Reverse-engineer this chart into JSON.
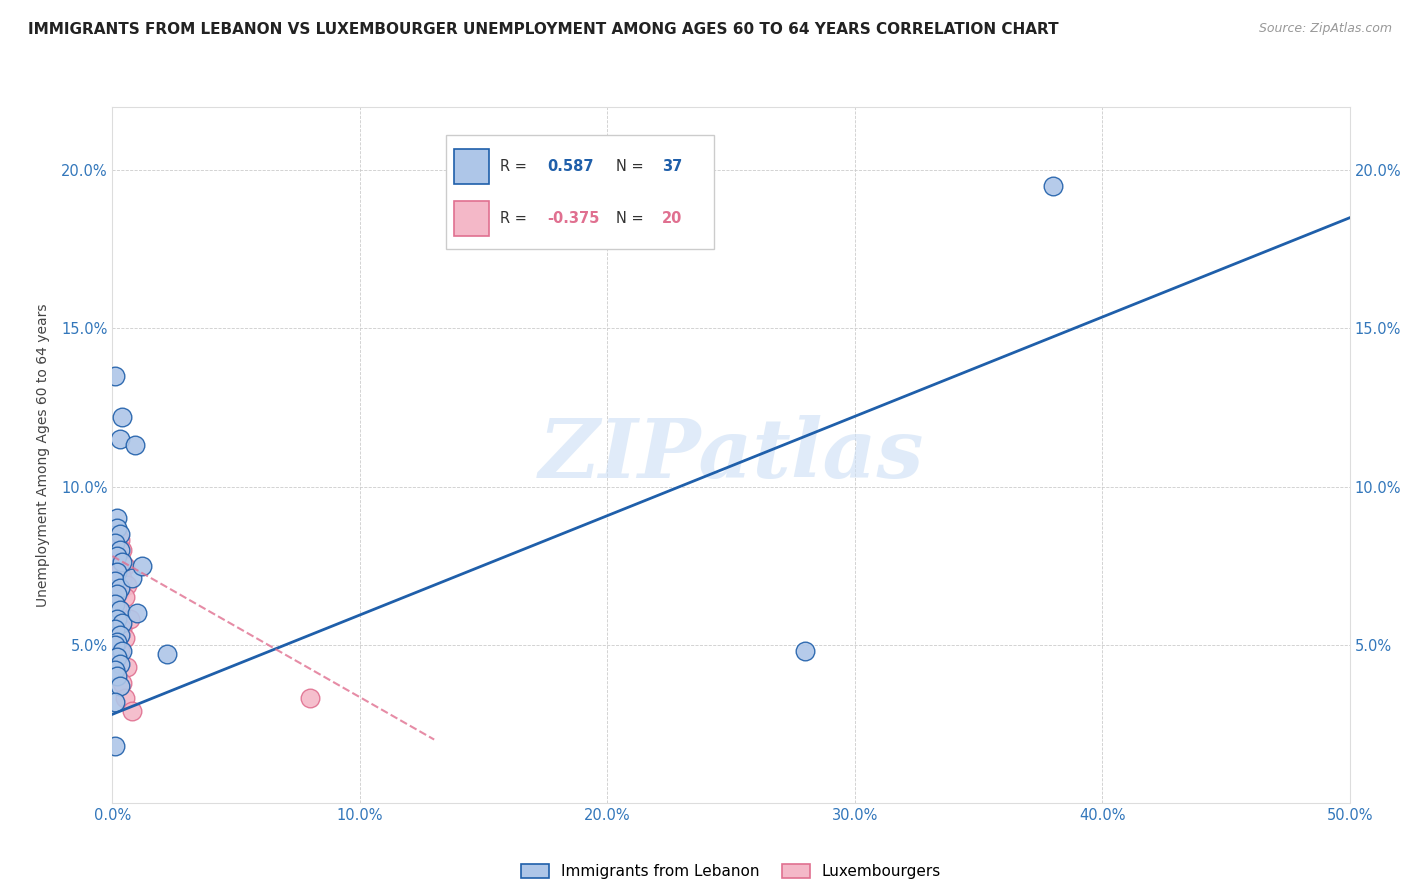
{
  "title": "IMMIGRANTS FROM LEBANON VS LUXEMBOURGER UNEMPLOYMENT AMONG AGES 60 TO 64 YEARS CORRELATION CHART",
  "source": "Source: ZipAtlas.com",
  "ylabel": "Unemployment Among Ages 60 to 64 years",
  "xmin": 0.0,
  "xmax": 0.5,
  "ymin": 0.0,
  "ymax": 0.22,
  "xticks": [
    0.0,
    0.1,
    0.2,
    0.3,
    0.4,
    0.5
  ],
  "xticklabels": [
    "0.0%",
    "10.0%",
    "20.0%",
    "30.0%",
    "40.0%",
    "50.0%"
  ],
  "yticks": [
    0.05,
    0.1,
    0.15,
    0.2
  ],
  "yticklabels": [
    "5.0%",
    "10.0%",
    "15.0%",
    "20.0%"
  ],
  "lebanon_R": 0.587,
  "lebanon_N": 37,
  "luxembourger_R": -0.375,
  "luxembourger_N": 20,
  "lebanon_color": "#aec6e8",
  "luxembourger_color": "#f4b8c8",
  "trendline_lebanon_color": "#1f5faa",
  "trendline_luxembourger_color": "#e07090",
  "watermark": "ZIPatlas",
  "lebanon_trendline": [
    [
      0.0,
      0.028
    ],
    [
      0.5,
      0.185
    ]
  ],
  "luxembourger_trendline": [
    [
      0.0,
      0.078
    ],
    [
      0.13,
      0.02
    ]
  ],
  "lebanon_points": [
    [
      0.001,
      0.135
    ],
    [
      0.004,
      0.122
    ],
    [
      0.003,
      0.115
    ],
    [
      0.009,
      0.113
    ],
    [
      0.002,
      0.09
    ],
    [
      0.002,
      0.087
    ],
    [
      0.003,
      0.085
    ],
    [
      0.001,
      0.082
    ],
    [
      0.003,
      0.08
    ],
    [
      0.002,
      0.078
    ],
    [
      0.004,
      0.076
    ],
    [
      0.002,
      0.073
    ],
    [
      0.001,
      0.07
    ],
    [
      0.003,
      0.068
    ],
    [
      0.002,
      0.066
    ],
    [
      0.001,
      0.063
    ],
    [
      0.003,
      0.061
    ],
    [
      0.002,
      0.058
    ],
    [
      0.004,
      0.057
    ],
    [
      0.001,
      0.055
    ],
    [
      0.003,
      0.053
    ],
    [
      0.002,
      0.051
    ],
    [
      0.001,
      0.05
    ],
    [
      0.004,
      0.048
    ],
    [
      0.002,
      0.046
    ],
    [
      0.003,
      0.044
    ],
    [
      0.001,
      0.042
    ],
    [
      0.002,
      0.04
    ],
    [
      0.003,
      0.037
    ],
    [
      0.001,
      0.032
    ],
    [
      0.001,
      0.018
    ],
    [
      0.008,
      0.071
    ],
    [
      0.01,
      0.06
    ],
    [
      0.012,
      0.075
    ],
    [
      0.022,
      0.047
    ],
    [
      0.28,
      0.048
    ],
    [
      0.38,
      0.195
    ]
  ],
  "luxembourger_points": [
    [
      0.002,
      0.086
    ],
    [
      0.003,
      0.083
    ],
    [
      0.004,
      0.08
    ],
    [
      0.002,
      0.077
    ],
    [
      0.005,
      0.075
    ],
    [
      0.003,
      0.073
    ],
    [
      0.004,
      0.071
    ],
    [
      0.006,
      0.069
    ],
    [
      0.003,
      0.067
    ],
    [
      0.005,
      0.065
    ],
    [
      0.002,
      0.062
    ],
    [
      0.007,
      0.058
    ],
    [
      0.004,
      0.055
    ],
    [
      0.005,
      0.052
    ],
    [
      0.003,
      0.048
    ],
    [
      0.006,
      0.043
    ],
    [
      0.004,
      0.038
    ],
    [
      0.005,
      0.033
    ],
    [
      0.008,
      0.029
    ],
    [
      0.08,
      0.033
    ]
  ]
}
